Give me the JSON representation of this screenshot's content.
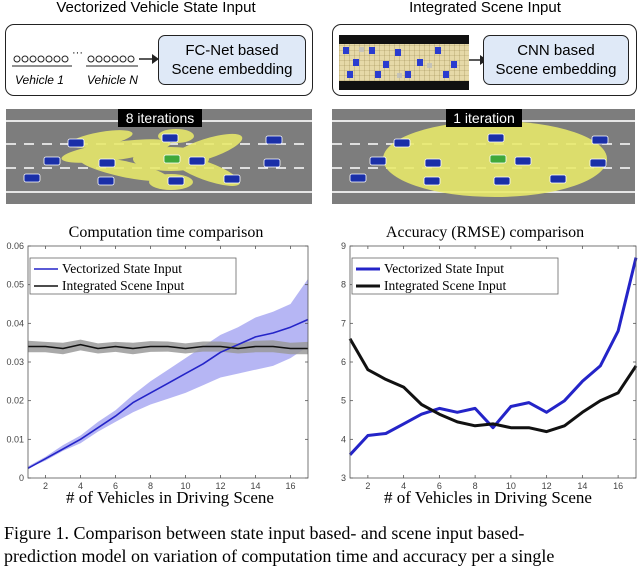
{
  "top_left": {
    "title": "Vectorized Vehicle State Input",
    "vehicle_first_label": "Vehicle 1",
    "vehicle_last_label": "Vehicle N",
    "ellipsis": "···",
    "embed_line1": "FC-Net based",
    "embed_line2": "Scene embedding",
    "iterations_label": "8 iterations"
  },
  "top_right": {
    "title": "Integrated Scene Input",
    "embed_line1": "CNN based",
    "embed_line2": "Scene embedding",
    "iterations_label": "1 iteration"
  },
  "colors": {
    "vectorized": "#2424c8",
    "integrated": "#111111",
    "band_vectorized": "#9d9df0",
    "band_integrated": "#9a9a9a",
    "embed_box": "#dfe9f7",
    "road": "#7d7d7d",
    "highlight": "#e9ea6a"
  },
  "chart_data": [
    {
      "type": "line",
      "title": "Computation time comparison",
      "xlabel": "# of Vehicles in Driving Scene",
      "ylabel": "",
      "xlim": [
        1,
        17
      ],
      "ylim": [
        0,
        0.06
      ],
      "x_ticks": [
        2,
        4,
        6,
        8,
        10,
        12,
        14,
        16
      ],
      "y_ticks": [
        0,
        0.01,
        0.02,
        0.03,
        0.04,
        0.05,
        0.06
      ],
      "y_tick_labels": [
        "0",
        "0.01",
        "0.02",
        "0.03",
        "0.04",
        "0.05",
        "0.06"
      ],
      "legend_position": "top-left",
      "grid": false,
      "x": [
        1,
        2,
        3,
        4,
        5,
        6,
        7,
        8,
        9,
        10,
        11,
        12,
        13,
        14,
        15,
        16,
        17
      ],
      "series": [
        {
          "name": "Vectorized State Input",
          "values": [
            0.0025,
            0.005,
            0.0075,
            0.01,
            0.013,
            0.016,
            0.0195,
            0.022,
            0.0245,
            0.027,
            0.0295,
            0.0325,
            0.0345,
            0.0365,
            0.0375,
            0.039,
            0.041
          ],
          "band_low": [
            0.0025,
            0.0045,
            0.007,
            0.009,
            0.012,
            0.0145,
            0.017,
            0.019,
            0.0205,
            0.022,
            0.024,
            0.026,
            0.027,
            0.028,
            0.029,
            0.031,
            0.034
          ],
          "band_high": [
            0.003,
            0.0055,
            0.0085,
            0.011,
            0.0145,
            0.0175,
            0.0215,
            0.025,
            0.028,
            0.031,
            0.034,
            0.037,
            0.039,
            0.0415,
            0.043,
            0.045,
            0.0515
          ]
        },
        {
          "name": "Integrated Scene Input",
          "values": [
            0.034,
            0.034,
            0.0335,
            0.0345,
            0.0335,
            0.034,
            0.0335,
            0.034,
            0.034,
            0.0335,
            0.034,
            0.034,
            0.0335,
            0.034,
            0.034,
            0.0335,
            0.0335
          ],
          "band_low": [
            0.0325,
            0.0325,
            0.032,
            0.033,
            0.0322,
            0.0326,
            0.032,
            0.0326,
            0.0327,
            0.0322,
            0.0327,
            0.0327,
            0.0322,
            0.0325,
            0.0325,
            0.032,
            0.032
          ],
          "band_high": [
            0.0355,
            0.0352,
            0.035,
            0.0358,
            0.0348,
            0.0352,
            0.035,
            0.0354,
            0.0353,
            0.0348,
            0.0353,
            0.0353,
            0.0348,
            0.0355,
            0.0356,
            0.035,
            0.0352
          ]
        }
      ]
    },
    {
      "type": "line",
      "title": "Accuracy (RMSE) comparison",
      "xlabel": "# of Vehicles in Driving Scene",
      "ylabel": "",
      "xlim": [
        1,
        17
      ],
      "ylim": [
        3,
        9
      ],
      "x_ticks": [
        2,
        4,
        6,
        8,
        10,
        12,
        14,
        16
      ],
      "y_ticks": [
        3,
        4,
        5,
        6,
        7,
        8,
        9
      ],
      "y_tick_labels": [
        "3",
        "4",
        "5",
        "6",
        "7",
        "8",
        "9"
      ],
      "legend_position": "top-left",
      "grid": false,
      "x": [
        1,
        2,
        3,
        4,
        5,
        6,
        7,
        8,
        9,
        10,
        11,
        12,
        13,
        14,
        15,
        16,
        17
      ],
      "series": [
        {
          "name": "Vectorized State Input",
          "values": [
            3.6,
            4.1,
            4.15,
            4.4,
            4.65,
            4.8,
            4.7,
            4.8,
            4.3,
            4.85,
            4.95,
            4.7,
            5.0,
            5.5,
            5.9,
            6.8,
            8.7
          ]
        },
        {
          "name": "Integrated Scene Input",
          "values": [
            6.6,
            5.8,
            5.55,
            5.35,
            4.9,
            4.65,
            4.45,
            4.35,
            4.4,
            4.3,
            4.3,
            4.2,
            4.35,
            4.7,
            5.0,
            5.2,
            5.9
          ]
        }
      ]
    }
  ],
  "caption": {
    "line1": "Figure 1. Comparison between state input based- and scene input based-",
    "line2": "prediction model on variation of computation time and accuracy per a single"
  }
}
